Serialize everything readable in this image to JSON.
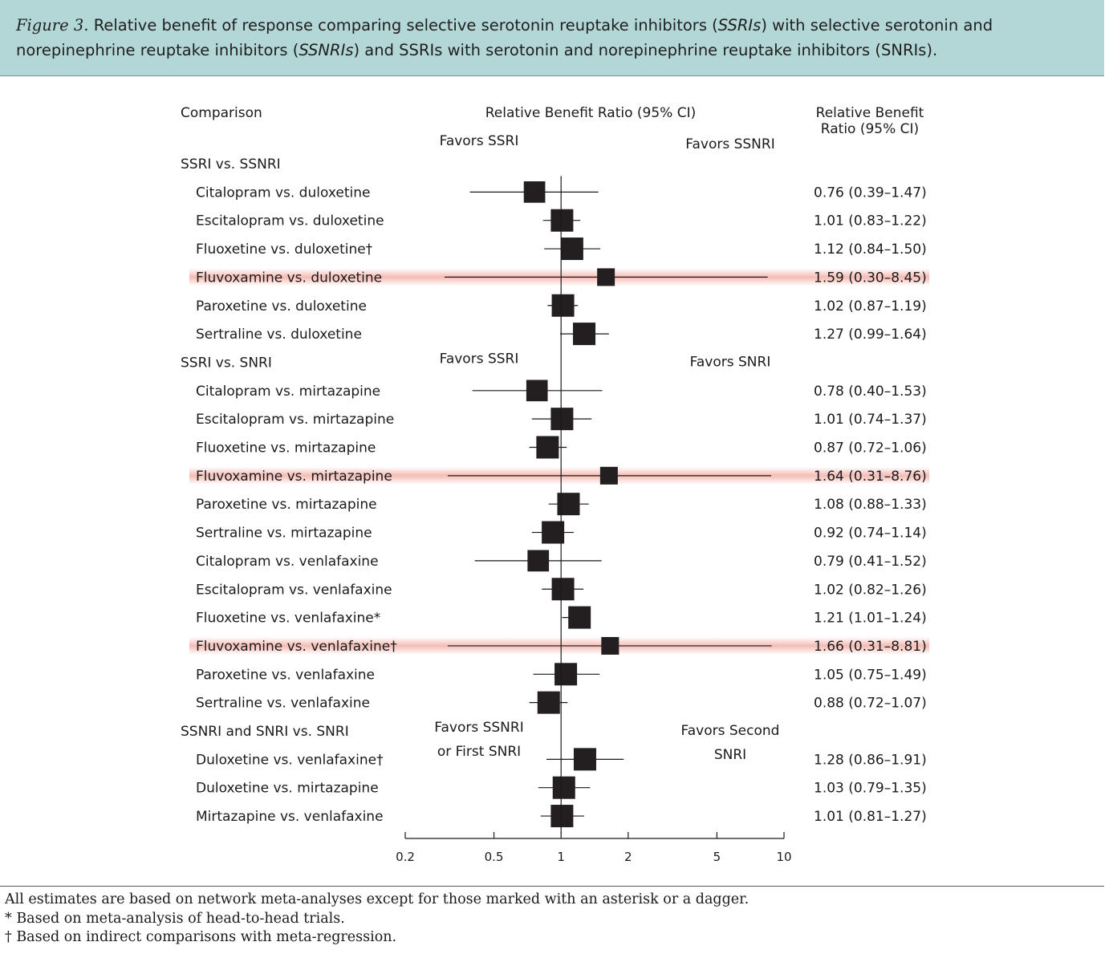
{
  "figure": {
    "label": "Figure 3.",
    "title_part1": "Relative benefit of response comparing selective serotonin reuptake inhibitors (",
    "abbr1": "SSRIs",
    "title_part2": ") with selective serotonin and",
    "title_part3": "norepinephrine reuptake inhibitors (",
    "abbr2": "SSNRIs",
    "title_part4": ") and SSRIs with serotonin and norepinephrine reuptake inhibitors (SNRIs)."
  },
  "columns": {
    "comparison": "Comparison",
    "ratio_plot": "Relative Benefit Ratio (95% CI)",
    "ratio_text_line1": "Relative Benefit",
    "ratio_text_line2": "Ratio (95% CI)"
  },
  "colors": {
    "marker": "#231f20",
    "highlight": "#f4b8b0",
    "line": "#1a1a1a"
  },
  "chart_data": {
    "type": "forest",
    "xscale": "log",
    "xlim": [
      0.2,
      10
    ],
    "xticks": [
      0.2,
      0.5,
      1,
      2,
      5,
      10
    ],
    "xtick_labels": [
      "0.2",
      "0.5",
      "1",
      "2",
      "5",
      "10"
    ],
    "reference_line": 1,
    "groups": [
      {
        "name": "SSRI vs. SSNRI",
        "favors_left": [
          "Favors SSRI"
        ],
        "favors_right": [
          "Favors SSNRI"
        ],
        "rows": [
          {
            "label": "Citalopram vs. duloxetine",
            "est": 0.76,
            "lo": 0.39,
            "hi": 1.47,
            "text": "0.76 (0.39–1.47)",
            "highlight": false
          },
          {
            "label": "Escitalopram vs. duloxetine",
            "est": 1.01,
            "lo": 0.83,
            "hi": 1.22,
            "text": "1.01 (0.83–1.22)",
            "highlight": false
          },
          {
            "label": "Fluoxetine vs. duloxetine†",
            "est": 1.12,
            "lo": 0.84,
            "hi": 1.5,
            "text": "1.12 (0.84–1.50)",
            "highlight": false
          },
          {
            "label": "Fluvoxamine vs. duloxetine",
            "est": 1.59,
            "lo": 0.3,
            "hi": 8.45,
            "text": "1.59 (0.30–8.45)",
            "highlight": true
          },
          {
            "label": "Paroxetine vs. duloxetine",
            "est": 1.02,
            "lo": 0.87,
            "hi": 1.19,
            "text": "1.02 (0.87–1.19)",
            "highlight": false
          },
          {
            "label": "Sertraline vs. duloxetine",
            "est": 1.27,
            "lo": 0.99,
            "hi": 1.64,
            "text": "1.27 (0.99–1.64)",
            "highlight": false
          }
        ]
      },
      {
        "name": "SSRI vs. SNRI",
        "favors_left": [
          "Favors SSRI"
        ],
        "favors_right": [
          "Favors SNRI"
        ],
        "rows": [
          {
            "label": "Citalopram vs. mirtazapine",
            "est": 0.78,
            "lo": 0.4,
            "hi": 1.53,
            "text": "0.78 (0.40–1.53)",
            "highlight": false
          },
          {
            "label": "Escitalopram vs. mirtazapine",
            "est": 1.01,
            "lo": 0.74,
            "hi": 1.37,
            "text": "1.01 (0.74–1.37)",
            "highlight": false
          },
          {
            "label": "Fluoxetine vs. mirtazapine",
            "est": 0.87,
            "lo": 0.72,
            "hi": 1.06,
            "text": "0.87 (0.72–1.06)",
            "highlight": false
          },
          {
            "label": "Fluvoxamine vs. mirtazapine",
            "est": 1.64,
            "lo": 0.31,
            "hi": 8.76,
            "text": "1.64 (0.31–8.76)",
            "highlight": true
          },
          {
            "label": "Paroxetine vs. mirtazapine",
            "est": 1.08,
            "lo": 0.88,
            "hi": 1.33,
            "text": "1.08 (0.88–1.33)",
            "highlight": false
          },
          {
            "label": "Sertraline vs. mirtazapine",
            "est": 0.92,
            "lo": 0.74,
            "hi": 1.14,
            "text": "0.92 (0.74–1.14)",
            "highlight": false
          },
          {
            "label": "Citalopram vs. venlafaxine",
            "est": 0.79,
            "lo": 0.41,
            "hi": 1.52,
            "text": "0.79 (0.41–1.52)",
            "highlight": false
          },
          {
            "label": "Escitalopram vs. venlafaxine",
            "est": 1.02,
            "lo": 0.82,
            "hi": 1.26,
            "text": "1.02 (0.82–1.26)",
            "highlight": false
          },
          {
            "label": "Fluoxetine vs. venlafaxine*",
            "est": 1.21,
            "lo": 1.01,
            "hi": 1.24,
            "text": "1.21 (1.01–1.24)",
            "highlight": false
          },
          {
            "label": "Fluvoxamine  vs. venlafaxine†",
            "est": 1.66,
            "lo": 0.31,
            "hi": 8.81,
            "text": "1.66 (0.31–8.81)",
            "highlight": true
          },
          {
            "label": "Paroxetine vs. venlafaxine",
            "est": 1.05,
            "lo": 0.75,
            "hi": 1.49,
            "text": "1.05 (0.75–1.49)",
            "highlight": false
          },
          {
            "label": "Sertraline  vs. venlafaxine",
            "est": 0.88,
            "lo": 0.72,
            "hi": 1.07,
            "text": "0.88 (0.72–1.07)",
            "highlight": false
          }
        ]
      },
      {
        "name": "SSNRI and SNRI vs. SNRI",
        "favors_left": [
          "Favors SSNRI",
          "or First SNRI"
        ],
        "favors_right": [
          "Favors Second",
          "SNRI"
        ],
        "rows": [
          {
            "label": "Duloxetine vs. venlafaxine†",
            "est": 1.28,
            "lo": 0.86,
            "hi": 1.91,
            "text": "1.28 (0.86–1.91)",
            "highlight": false
          },
          {
            "label": "Duloxetine vs. mirtazapine",
            "est": 1.03,
            "lo": 0.79,
            "hi": 1.35,
            "text": "1.03 (0.79–1.35)",
            "highlight": false
          },
          {
            "label": "Mirtazapine vs. venlafaxine",
            "est": 1.01,
            "lo": 0.81,
            "hi": 1.27,
            "text": "1.01 (0.81–1.27)",
            "highlight": false
          }
        ]
      }
    ]
  },
  "footnotes": {
    "general": "All estimates are based on network meta-analyses except for those marked with an asterisk or a dagger.",
    "asterisk": "*  Based on meta-analysis of head-to-head trials.",
    "dagger": "† Based on indirect comparisons with meta-regression."
  }
}
